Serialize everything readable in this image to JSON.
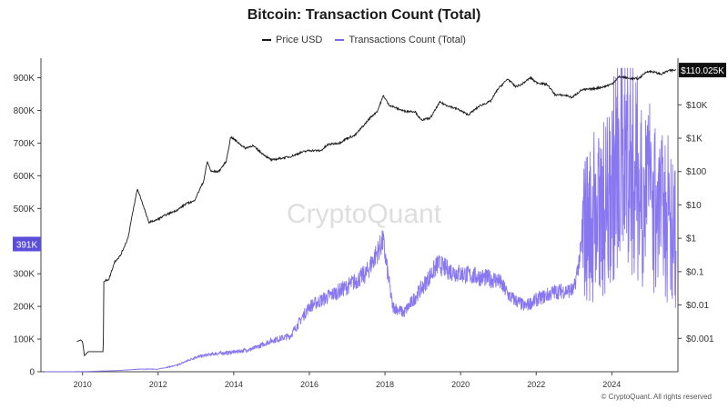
{
  "chart_data": {
    "type": "line",
    "title": "Bitcoin: Transaction Count (Total)",
    "watermark": "CryptoQuant",
    "credit": "© CryptoQuant. All rights reserved",
    "x_ticks": [
      "2010",
      "2012",
      "2014",
      "2016",
      "2018",
      "2020",
      "2022",
      "2024"
    ],
    "x_range": [
      2008.9,
      2025.75
    ],
    "left_axis": {
      "scale": "linear",
      "ylim": [
        0,
        960000
      ],
      "ticks": [
        {
          "value": 0,
          "label": "0"
        },
        {
          "value": 100000,
          "label": "100K"
        },
        {
          "value": 200000,
          "label": "200K"
        },
        {
          "value": 300000,
          "label": "300K"
        },
        {
          "value": 400000,
          "label": "400K"
        },
        {
          "value": 500000,
          "label": "500K"
        },
        {
          "value": 600000,
          "label": "600K"
        },
        {
          "value": 700000,
          "label": "700K"
        },
        {
          "value": 800000,
          "label": "800K"
        },
        {
          "value": 900000,
          "label": "900K"
        }
      ],
      "current_label": "391K",
      "current_value": 391000
    },
    "right_axis": {
      "scale": "log",
      "ylim": [
        0.0001,
        250000
      ],
      "ticks": [
        {
          "value": 0.001,
          "label": "$0.001"
        },
        {
          "value": 0.01,
          "label": "$0.01"
        },
        {
          "value": 0.1,
          "label": "$0.1"
        },
        {
          "value": 1,
          "label": "$1"
        },
        {
          "value": 10,
          "label": "$10"
        },
        {
          "value": 100,
          "label": "$100"
        },
        {
          "value": 1000,
          "label": "$1K"
        },
        {
          "value": 10000,
          "label": "$10K"
        }
      ],
      "current_label": "$110.025K",
      "current_value": 110025
    },
    "series": [
      {
        "name": "Price USD",
        "axis": "right",
        "color": "#1a1a1a",
        "points": [
          [
            2009.85,
            0.0008
          ],
          [
            2009.95,
            0.0009
          ],
          [
            2010.0,
            0.0008
          ],
          [
            2010.05,
            0.0003
          ],
          [
            2010.15,
            0.0004
          ],
          [
            2010.55,
            0.0004
          ],
          [
            2010.56,
            0.05
          ],
          [
            2010.7,
            0.06
          ],
          [
            2010.85,
            0.2
          ],
          [
            2011.0,
            0.3
          ],
          [
            2011.2,
            1.0
          ],
          [
            2011.35,
            8.0
          ],
          [
            2011.45,
            30
          ],
          [
            2011.55,
            15
          ],
          [
            2011.75,
            3.0
          ],
          [
            2011.95,
            3.5
          ],
          [
            2012.2,
            5
          ],
          [
            2012.5,
            7
          ],
          [
            2012.75,
            11
          ],
          [
            2012.95,
            13
          ],
          [
            2013.2,
            50
          ],
          [
            2013.3,
            200
          ],
          [
            2013.4,
            100
          ],
          [
            2013.6,
            100
          ],
          [
            2013.8,
            200
          ],
          [
            2013.92,
            1100
          ],
          [
            2014.05,
            850
          ],
          [
            2014.3,
            500
          ],
          [
            2014.5,
            600
          ],
          [
            2014.75,
            350
          ],
          [
            2015.0,
            220
          ],
          [
            2015.25,
            250
          ],
          [
            2015.5,
            280
          ],
          [
            2015.8,
            380
          ],
          [
            2016.0,
            430
          ],
          [
            2016.3,
            420
          ],
          [
            2016.5,
            650
          ],
          [
            2016.8,
            720
          ],
          [
            2017.0,
            1000
          ],
          [
            2017.2,
            1200
          ],
          [
            2017.45,
            2500
          ],
          [
            2017.6,
            4000
          ],
          [
            2017.8,
            6500
          ],
          [
            2017.96,
            19000
          ],
          [
            2018.1,
            10000
          ],
          [
            2018.3,
            8000
          ],
          [
            2018.5,
            6500
          ],
          [
            2018.8,
            6300
          ],
          [
            2018.95,
            3500
          ],
          [
            2019.2,
            4000
          ],
          [
            2019.45,
            12000
          ],
          [
            2019.6,
            10000
          ],
          [
            2019.95,
            7200
          ],
          [
            2020.2,
            5000
          ],
          [
            2020.5,
            9200
          ],
          [
            2020.8,
            13000
          ],
          [
            2020.98,
            29000
          ],
          [
            2021.25,
            60000
          ],
          [
            2021.45,
            35000
          ],
          [
            2021.6,
            40000
          ],
          [
            2021.85,
            65000
          ],
          [
            2022.0,
            47000
          ],
          [
            2022.3,
            40000
          ],
          [
            2022.5,
            20000
          ],
          [
            2022.8,
            19000
          ],
          [
            2022.95,
            16500
          ],
          [
            2023.2,
            28000
          ],
          [
            2023.5,
            30000
          ],
          [
            2023.8,
            35000
          ],
          [
            2024.0,
            42000
          ],
          [
            2024.2,
            70000
          ],
          [
            2024.45,
            62000
          ],
          [
            2024.7,
            60000
          ],
          [
            2024.93,
            100000
          ],
          [
            2025.1,
            98000
          ],
          [
            2025.3,
            82000
          ],
          [
            2025.5,
            105000
          ],
          [
            2025.7,
            110025
          ]
        ]
      },
      {
        "name": "Transactions Count (Total)",
        "axis": "left",
        "color": "#7b68ee",
        "points": [
          [
            2009.0,
            0
          ],
          [
            2010.0,
            400
          ],
          [
            2011.0,
            4000
          ],
          [
            2011.5,
            8000
          ],
          [
            2012.0,
            8000
          ],
          [
            2012.5,
            20000
          ],
          [
            2013.0,
            45000
          ],
          [
            2013.5,
            55000
          ],
          [
            2014.0,
            60000
          ],
          [
            2014.5,
            70000
          ],
          [
            2015.0,
            95000
          ],
          [
            2015.5,
            110000
          ],
          [
            2016.0,
            200000
          ],
          [
            2016.5,
            230000
          ],
          [
            2017.0,
            260000
          ],
          [
            2017.5,
            300000
          ],
          [
            2017.95,
            400000
          ],
          [
            2018.2,
            200000
          ],
          [
            2018.5,
            180000
          ],
          [
            2019.0,
            260000
          ],
          [
            2019.4,
            330000
          ],
          [
            2019.7,
            310000
          ],
          [
            2020.0,
            300000
          ],
          [
            2020.5,
            290000
          ],
          [
            2021.0,
            280000
          ],
          [
            2021.3,
            230000
          ],
          [
            2021.7,
            200000
          ],
          [
            2022.0,
            220000
          ],
          [
            2022.5,
            245000
          ],
          [
            2023.0,
            250000
          ],
          [
            2023.3,
            450000
          ],
          [
            2023.6,
            470000
          ],
          [
            2023.9,
            520000
          ],
          [
            2024.1,
            620000
          ],
          [
            2024.35,
            700000
          ],
          [
            2024.6,
            600000
          ],
          [
            2024.9,
            550000
          ],
          [
            2025.2,
            470000
          ],
          [
            2025.5,
            470000
          ],
          [
            2025.7,
            391000
          ]
        ]
      }
    ]
  }
}
